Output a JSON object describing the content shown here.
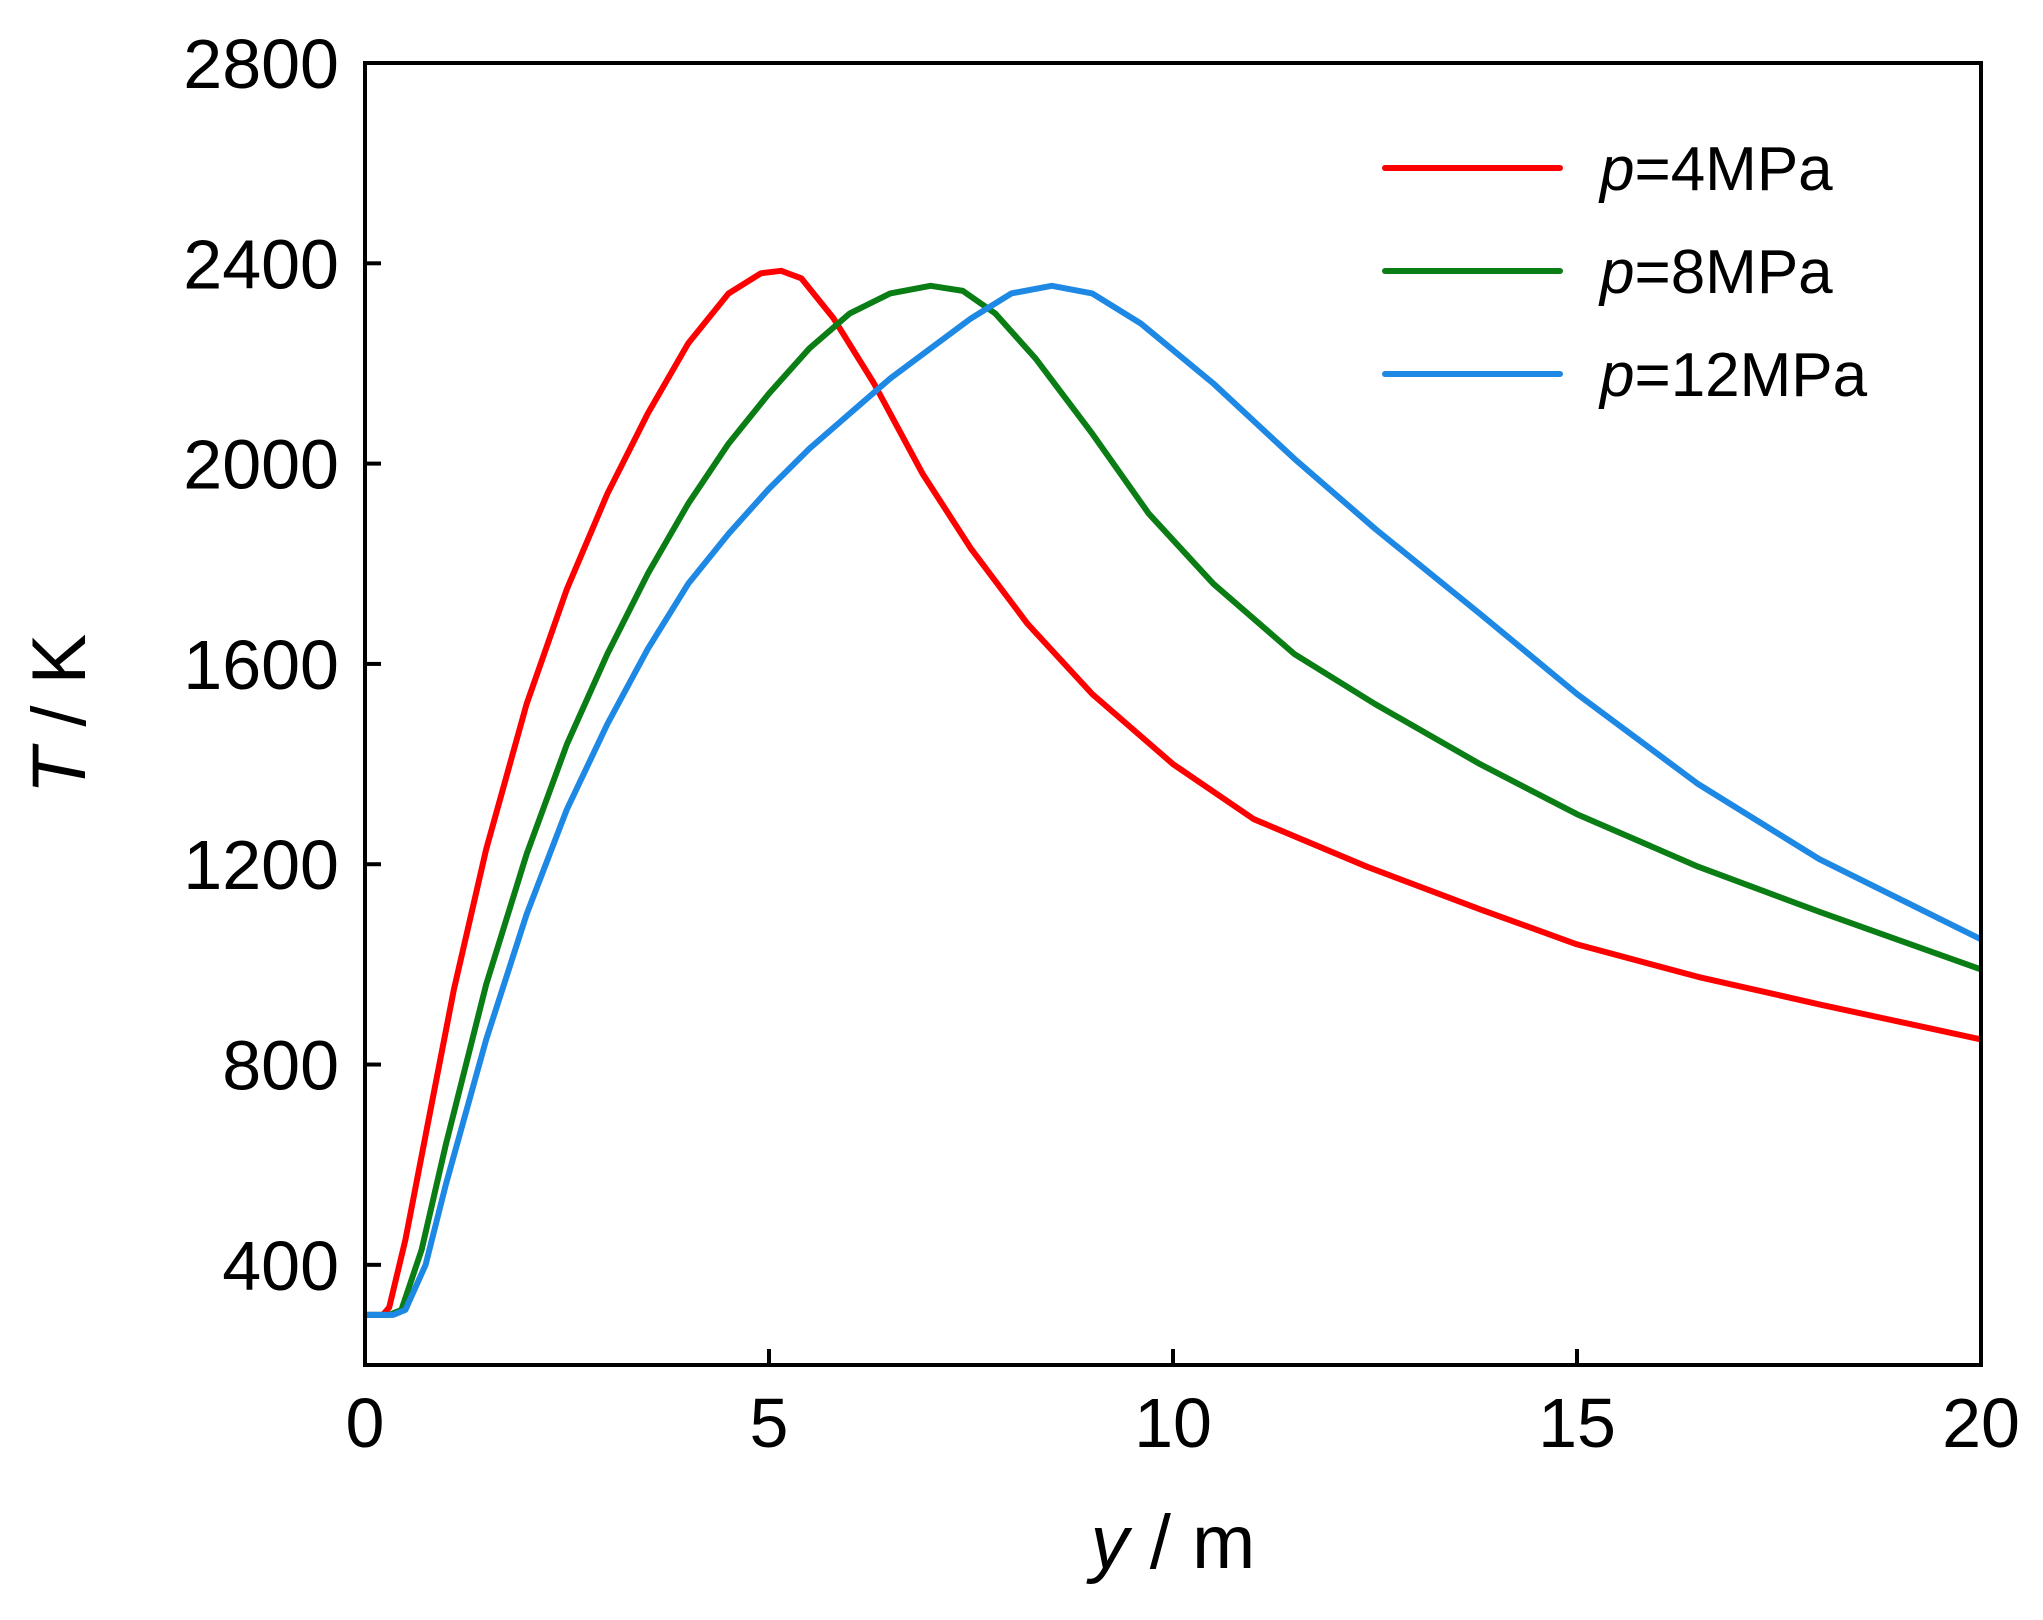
{
  "chart_data": {
    "type": "line",
    "title": "",
    "xlabel_var": "y",
    "xlabel_unit": " / m",
    "ylabel_var": "T",
    "ylabel_unit": " / K",
    "xlim": [
      0,
      20
    ],
    "ylim": [
      200,
      2800
    ],
    "xticks": [
      0,
      5,
      10,
      15,
      20
    ],
    "yticks": [
      400,
      800,
      1200,
      1600,
      2000,
      2400,
      2800
    ],
    "grid": false,
    "legend_position": "top-right",
    "series": [
      {
        "name_var": "p",
        "name_rest": "=4MPa",
        "color": "#ff0000",
        "x": [
          0,
          0.22,
          0.3,
          0.5,
          0.8,
          1.1,
          1.5,
          2.0,
          2.5,
          3.0,
          3.5,
          4.0,
          4.5,
          4.9,
          5.15,
          5.4,
          5.8,
          6.3,
          6.9,
          7.5,
          8.2,
          9.0,
          10.0,
          11.0,
          12.4,
          13.8,
          15.0,
          16.5,
          18.0,
          20.0
        ],
        "y": [
          300,
          300,
          315,
          450,
          700,
          950,
          1230,
          1520,
          1750,
          1940,
          2100,
          2240,
          2340,
          2380,
          2385,
          2370,
          2290,
          2160,
          1980,
          1830,
          1680,
          1540,
          1400,
          1290,
          1195,
          1110,
          1040,
          975,
          920,
          850
        ]
      },
      {
        "name_var": "p",
        "name_rest": "=8MPa",
        "color": "#0a7d14",
        "x": [
          0,
          0.3,
          0.45,
          0.7,
          1.0,
          1.5,
          2.0,
          2.5,
          3.0,
          3.5,
          4.0,
          4.5,
          5.0,
          5.5,
          6.0,
          6.5,
          7.0,
          7.4,
          7.8,
          8.3,
          9.0,
          9.7,
          10.5,
          11.5,
          12.5,
          13.8,
          15.0,
          16.5,
          18.0,
          20.0
        ],
        "y": [
          300,
          300,
          310,
          430,
          640,
          960,
          1220,
          1440,
          1620,
          1780,
          1920,
          2040,
          2140,
          2230,
          2300,
          2340,
          2355,
          2345,
          2300,
          2210,
          2060,
          1900,
          1760,
          1620,
          1520,
          1400,
          1300,
          1195,
          1105,
          990
        ]
      },
      {
        "name_var": "p",
        "name_rest": "=12MPa",
        "color": "#1e88e5",
        "x": [
          0,
          0.35,
          0.5,
          0.75,
          1.0,
          1.5,
          2.0,
          2.5,
          3.0,
          3.5,
          4.0,
          4.5,
          5.0,
          5.5,
          6.0,
          6.5,
          7.0,
          7.5,
          8.0,
          8.5,
          9.0,
          9.6,
          10.5,
          11.5,
          12.5,
          13.8,
          15.0,
          16.5,
          18.0,
          20.0
        ],
        "y": [
          300,
          300,
          310,
          400,
          560,
          850,
          1100,
          1310,
          1480,
          1630,
          1760,
          1860,
          1950,
          2030,
          2100,
          2170,
          2230,
          2290,
          2340,
          2355,
          2340,
          2280,
          2160,
          2010,
          1870,
          1700,
          1540,
          1360,
          1210,
          1050
        ]
      }
    ]
  }
}
